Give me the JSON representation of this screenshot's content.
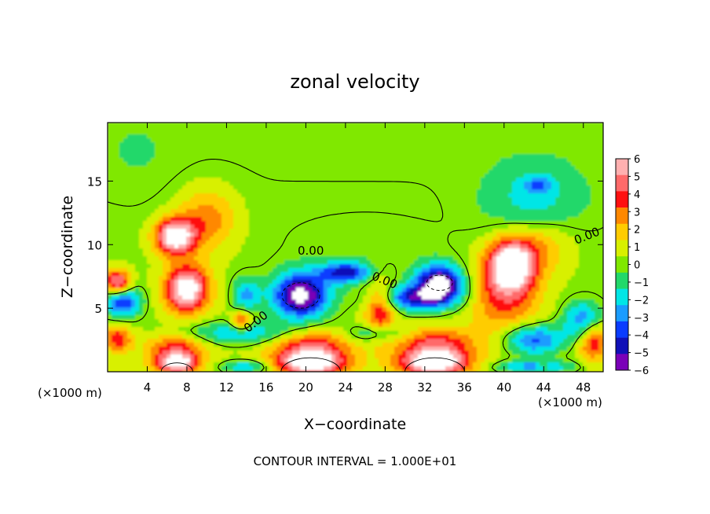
{
  "chart_data": {
    "type": "heatmap",
    "title": "zonal velocity",
    "xlabel": "X−coordinate",
    "ylabel": "Z−coordinate",
    "x_unit": "(×1000 m)",
    "y_unit": "(×1000 m)",
    "x_ticks": [
      4,
      8,
      12,
      16,
      20,
      24,
      28,
      32,
      36,
      40,
      44,
      48
    ],
    "y_ticks": [
      5,
      10,
      15
    ],
    "xlim": [
      0,
      50
    ],
    "ylim": [
      0,
      19.6
    ],
    "colorbar": {
      "levels": [
        6,
        5,
        4,
        3,
        2,
        1,
        0,
        -1,
        -2,
        -3,
        -4,
        -5,
        -6
      ],
      "level_labels": [
        "6",
        "5",
        "4",
        "3",
        "2",
        "1",
        "0",
        "−1",
        "−2",
        "−3",
        "−4",
        "−5",
        "−6"
      ],
      "colors": [
        "#ffb0b0",
        "#ff6a6a",
        "#ff1010",
        "#ff8800",
        "#ffcc00",
        "#d8f000",
        "#80e800",
        "#22d86a",
        "#00e6e6",
        "#1a9cff",
        "#0a3cff",
        "#1010b8",
        "#7a00b8"
      ]
    },
    "contour_labels": [
      "0.00",
      "0.00",
      "0.00",
      "0.00"
    ],
    "footer": "CONTOUR INTERVAL = 1.000E+01",
    "features": [
      {
        "x": 6.8,
        "z": 10.6,
        "value": 7.5,
        "sx": 2.0,
        "sz": 1.4
      },
      {
        "x": 8.0,
        "z": 6.5,
        "value": 7.5,
        "sx": 2.2,
        "sz": 1.8
      },
      {
        "x": 10.0,
        "z": 12.0,
        "value": 3.0,
        "sx": 3.0,
        "sz": 2.5
      },
      {
        "x": 1.0,
        "z": 7.0,
        "value": 6.0,
        "sx": 1.3,
        "sz": 1.0
      },
      {
        "x": 1.0,
        "z": 2.6,
        "value": 4.0,
        "sx": 1.4,
        "sz": 1.0
      },
      {
        "x": 13.5,
        "z": 4.0,
        "value": 4.0,
        "sx": 1.0,
        "sz": 0.8
      },
      {
        "x": 27.5,
        "z": 5.0,
        "value": 4.5,
        "sx": 1.5,
        "sz": 2.0
      },
      {
        "x": 40.8,
        "z": 8.5,
        "value": 7.5,
        "sx": 2.4,
        "sz": 2.0
      },
      {
        "x": 40.0,
        "z": 6.0,
        "value": 3.5,
        "sx": 3.5,
        "sz": 3.0
      },
      {
        "x": 44.0,
        "z": 10.0,
        "value": 2.0,
        "sx": 3.0,
        "sz": 2.0
      },
      {
        "x": 49.0,
        "z": 2.5,
        "value": 4.5,
        "sx": 1.5,
        "sz": 1.5
      },
      {
        "x": 7.0,
        "z": 0.7,
        "value": 7.0,
        "sx": 2.2,
        "sz": 0.8
      },
      {
        "x": 20.5,
        "z": 0.7,
        "value": 7.5,
        "sx": 3.5,
        "sz": 1.0
      },
      {
        "x": 33.0,
        "z": 0.7,
        "value": 7.5,
        "sx": 3.5,
        "sz": 1.0
      },
      {
        "x": 20.5,
        "z": 2.2,
        "value": 4.0,
        "sx": 4.0,
        "sz": 1.2
      },
      {
        "x": 33.0,
        "z": 2.2,
        "value": 4.0,
        "sx": 4.0,
        "sz": 1.2
      },
      {
        "x": 7.0,
        "z": 2.0,
        "value": 3.5,
        "sx": 3.0,
        "sz": 1.0
      },
      {
        "x": 19.5,
        "z": 6.0,
        "value": -7.5,
        "sx": 2.8,
        "sz": 1.8
      },
      {
        "x": 33.5,
        "z": 7.0,
        "value": -7.5,
        "sx": 2.4,
        "sz": 1.4
      },
      {
        "x": 1.5,
        "z": 5.5,
        "value": -5.0,
        "sx": 1.8,
        "sz": 1.2
      },
      {
        "x": 14.0,
        "z": 6.0,
        "value": -3.0,
        "sx": 1.4,
        "sz": 1.4
      },
      {
        "x": 24.0,
        "z": 7.8,
        "value": -5.5,
        "sx": 2.5,
        "sz": 0.8
      },
      {
        "x": 31.0,
        "z": 5.8,
        "value": -5.0,
        "sx": 4.0,
        "sz": 1.0
      },
      {
        "x": 13.5,
        "z": 3.0,
        "value": -3.0,
        "sx": 6.0,
        "sz": 0.9
      },
      {
        "x": 27.0,
        "z": 3.0,
        "value": -2.5,
        "sx": 3.0,
        "sz": 0.7
      },
      {
        "x": 43.0,
        "z": 2.5,
        "value": -4.5,
        "sx": 3.0,
        "sz": 1.2
      },
      {
        "x": 48.0,
        "z": 4.0,
        "value": -4.0,
        "sx": 2.0,
        "sz": 1.5
      },
      {
        "x": 43.0,
        "z": 13.5,
        "value": -2.0,
        "sx": 5.0,
        "sz": 3.0
      },
      {
        "x": 43.5,
        "z": 14.7,
        "value": -2.5,
        "sx": 1.4,
        "sz": 0.6
      },
      {
        "x": 26.0,
        "z": 10.0,
        "value": -0.5,
        "sx": 8.0,
        "sz": 2.0
      },
      {
        "x": 3.0,
        "z": 17.0,
        "value": -0.5,
        "sx": 4.0,
        "sz": 3.0
      },
      {
        "x": 43.0,
        "z": 0.4,
        "value": -3.5,
        "sx": 4.0,
        "sz": 0.5
      },
      {
        "x": 14.0,
        "z": 0.4,
        "value": -3.0,
        "sx": 2.5,
        "sz": 0.5
      },
      {
        "x": 44.0,
        "z": 0.5,
        "value": 1.8,
        "sx": 0.6,
        "sz": 0.4
      }
    ]
  }
}
